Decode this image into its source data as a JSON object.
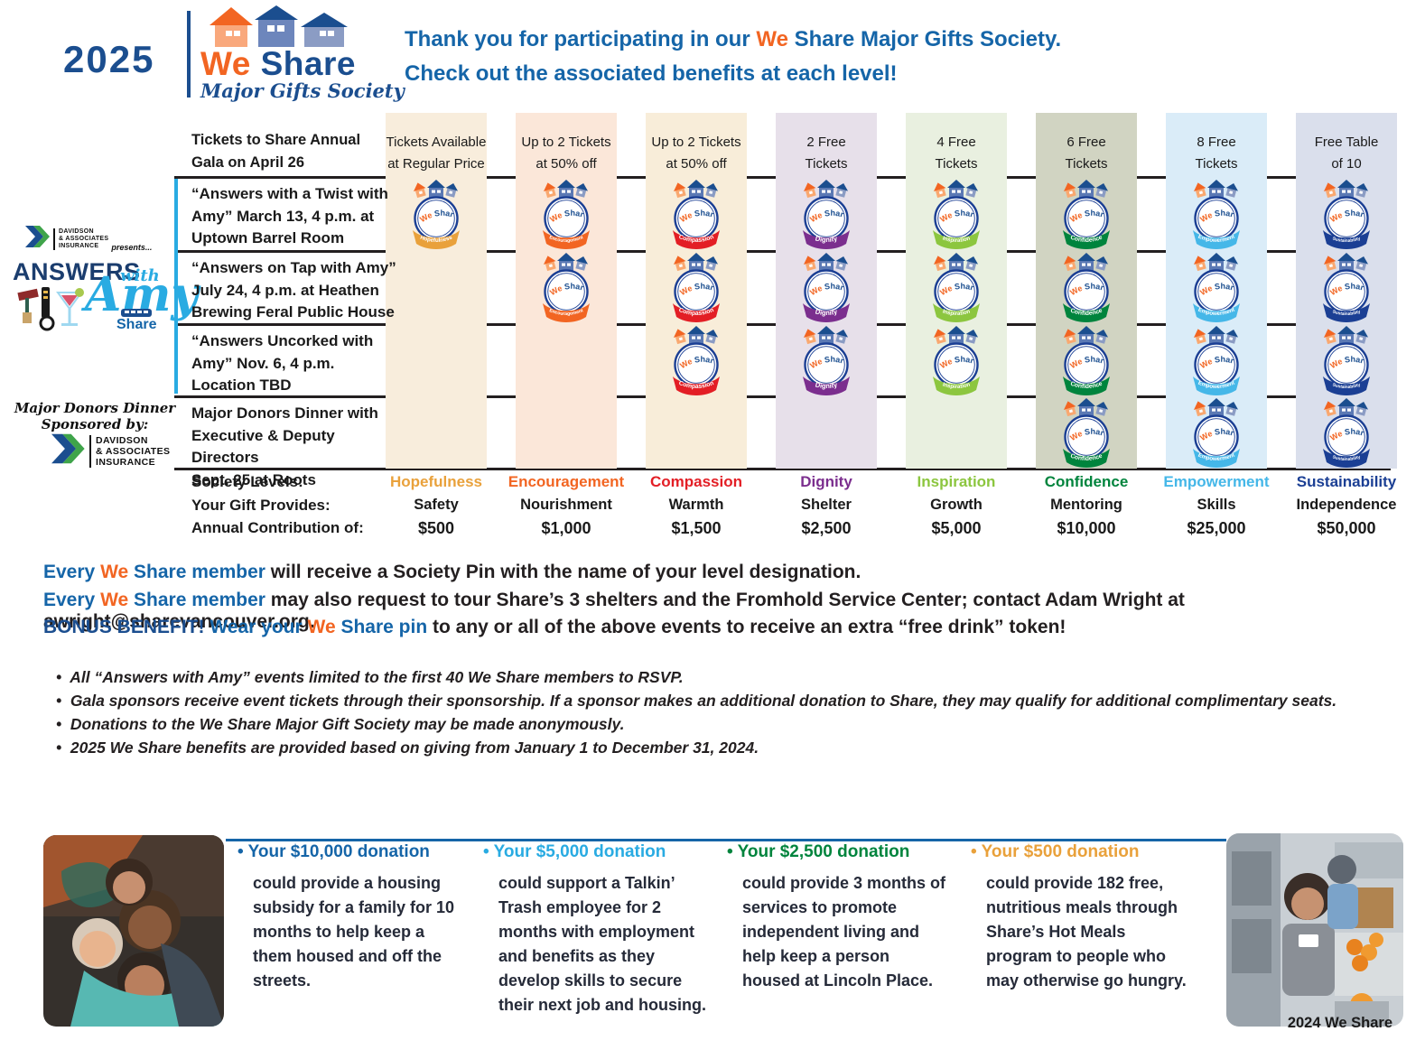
{
  "header": {
    "year": "2025",
    "logo": {
      "we": "We",
      "share": "Share",
      "tagline": "Major Gifts Society"
    },
    "thanks_line1": [
      [
        "Thank you for participating in our ",
        "c1"
      ],
      [
        "We ",
        "c2"
      ],
      [
        "Share",
        "c1b"
      ],
      [
        " Major Gifts Society.",
        "c1"
      ]
    ],
    "thanks_line2": [
      [
        "Check out the associated benefits at each level!",
        "c1"
      ]
    ]
  },
  "sidebar": {
    "davidson_lines": "DAVIDSON\n& ASSOCIATES\nINSURANCE",
    "presents": "presents...",
    "answers": "ANSWERS",
    "with": "with",
    "amy": "Amy",
    "share_sub": "Share",
    "dinner_sponsor_line1": "Major Donors Dinner",
    "dinner_sponsor_line2": "Sponsored by:"
  },
  "table": {
    "gala_label": "Tickets to Share Annual\nGala on April 26",
    "benefit_headers": [
      "Tickets Available\nat Regular Price",
      "Up to 2 Tickets\nat 50% off",
      "Up to 2 Tickets\nat 50% off",
      "2 Free\nTickets",
      "4 Free\nTickets",
      "6 Free\nTickets",
      "8 Free\nTickets",
      "Free Table\nof 10"
    ],
    "levels": [
      {
        "name": "Hopefulness",
        "provides": "Safety",
        "amount": "$500",
        "color": "#E9A13B",
        "band": "#F8EDDC"
      },
      {
        "name": "Encouragement",
        "provides": "Nourishment",
        "amount": "$1,000",
        "color": "#F26522",
        "band": "#FBE7D9"
      },
      {
        "name": "Compassion",
        "provides": "Warmth",
        "amount": "$1,500",
        "color": "#E31E25",
        "band": "#F8EDD9"
      },
      {
        "name": "Dignity",
        "provides": "Shelter",
        "amount": "$2,500",
        "color": "#7B2E8E",
        "band": "#E7E0EA"
      },
      {
        "name": "Inspiration",
        "provides": "Growth",
        "amount": "$5,000",
        "color": "#8CC63F",
        "band": "#E9F0E0"
      },
      {
        "name": "Confidence",
        "provides": "Mentoring",
        "amount": "$10,000",
        "color": "#00843D",
        "band": "#D1D4C2"
      },
      {
        "name": "Empowerment",
        "provides": "Skills",
        "amount": "$25,000",
        "color": "#45B7E8",
        "band": "#DAECF8"
      },
      {
        "name": "Sustainability",
        "provides": "Independence",
        "amount": "$50,000",
        "color": "#1B3F94",
        "band": "#DADFEC"
      }
    ],
    "event_rows": [
      {
        "label": "“Answers with a Twist with\nAmy” March 13, 4 p.m. at\nUptown Barrel Room",
        "badges": [
          1,
          1,
          1,
          1,
          1,
          1,
          1,
          1
        ]
      },
      {
        "label": "“Answers on Tap with Amy”\nJuly 24, 4 p.m. at Heathen\nBrewing Feral Public House",
        "badges": [
          0,
          1,
          1,
          1,
          1,
          1,
          1,
          1
        ]
      },
      {
        "label": "“Answers Uncorked with\nAmy” Nov. 6, 4 p.m.\nLocation TBD",
        "badges": [
          0,
          0,
          1,
          1,
          1,
          1,
          1,
          1
        ]
      },
      {
        "label": "Major Donors Dinner with\nExecutive & Deputy Directors\nSept. 25 at Roots",
        "badges": [
          0,
          0,
          0,
          0,
          0,
          1,
          1,
          1
        ]
      }
    ],
    "footer_labels": {
      "levels": "Society Levels:",
      "provides": "Your Gift Provides:",
      "amount": "Annual Contribution of:"
    },
    "pin_text": {
      "we": "We",
      "share": "Share"
    }
  },
  "member_benefits": [
    [
      [
        "Every ",
        "c1"
      ],
      [
        "We ",
        "c2"
      ],
      [
        "Share member ",
        "c1"
      ],
      [
        "will receive a Society Pin with the name of your level designation.",
        "c3"
      ]
    ],
    [
      [
        "Every ",
        "c1"
      ],
      [
        "We ",
        "c2"
      ],
      [
        "Share member ",
        "c1"
      ],
      [
        "may also request to tour Share’s 3 shelters and the Fromhold Service Center; contact Adam Wright at awright@sharevancouver.org.",
        "c3"
      ]
    ],
    [
      [
        "BONUS BENEFIT! ",
        "c4"
      ],
      [
        "Wear your ",
        "c1"
      ],
      [
        "We ",
        "c2"
      ],
      [
        "Share pin ",
        "c1"
      ],
      [
        "to any or all of the above events to receive an extra “free drink” token!",
        "c3"
      ]
    ]
  ],
  "notes": [
    "All “Answers with Amy” events limited to the first 40 We Share members to RSVP.",
    "Gala sponsors receive event tickets through their sponsorship. If a sponsor makes an additional donation to Share, they may qualify for additional complimentary seats.",
    "Donations to the We Share Major Gift Society may be made anonymously.",
    "2025 We Share benefits are provided based on giving from January 1 to December 31, 2024."
  ],
  "impact": [
    {
      "heading": "Your $10,000 donation",
      "color": "#1565A8",
      "body": "could provide a housing subsidy for a family for 10 months to help keep a them housed and off the streets."
    },
    {
      "heading": "Your $5,000 donation",
      "color": "#29ABE2",
      "body": "could support a Talkin’ Trash employee for 2 months with employment and benefits as they develop skills to secure their next job and housing."
    },
    {
      "heading": "Your $2,500 donation",
      "color": "#00843D",
      "body": "could provide 3 months of services to promote independent living and help keep a person housed at Lincoln Place."
    },
    {
      "heading": "Your $500 donation",
      "color": "#E9A13B",
      "body": "could provide 182 free, nutritious meals through Share’s Hot Meals program to people who may otherwise go hungry."
    }
  ],
  "footer": {
    "credit": "2024 We Share"
  },
  "colors": {
    "orange": "#F26522",
    "blue": "#1565A8",
    "navy": "#1B4E8F",
    "light_blue": "#29ABE2",
    "dark": "#231F20"
  }
}
